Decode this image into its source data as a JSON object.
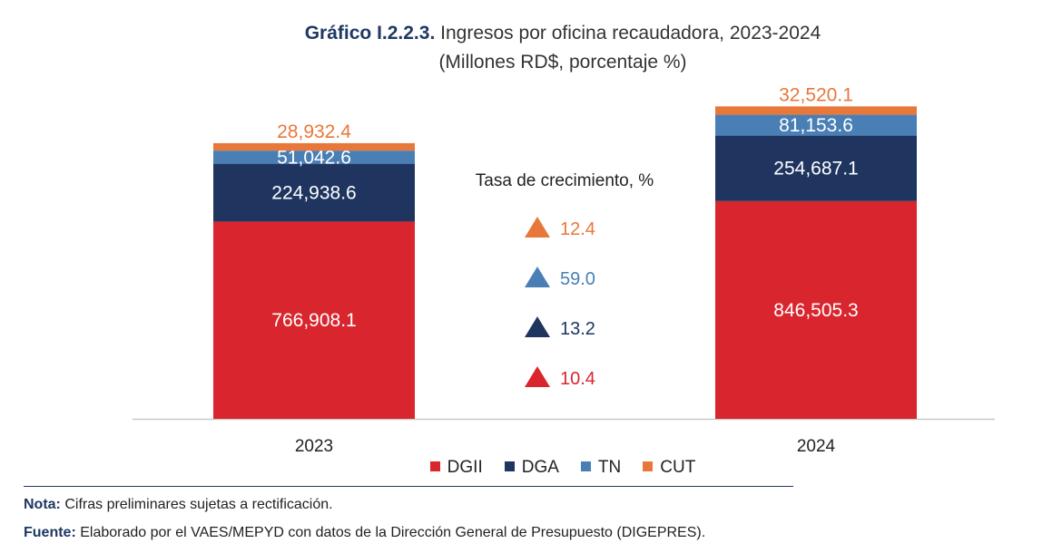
{
  "header": {
    "title_label": "Gráfico I.2.2.3.",
    "title_text": "Ingresos por oficina recaudadora, 2023-2024",
    "subtitle": "(Millones RD$, porcentaje %)"
  },
  "chart_data": {
    "type": "bar",
    "stacked": true,
    "categories": [
      "2023",
      "2024"
    ],
    "series": [
      {
        "name": "DGII",
        "color": "#d9262e",
        "values": [
          766908.1,
          846505.3
        ],
        "labels": [
          "766,908.1",
          "846,505.3"
        ]
      },
      {
        "name": "DGA",
        "color": "#1f3560",
        "values": [
          224938.6,
          254687.1
        ],
        "labels": [
          "224,938.6",
          "254,687.1"
        ]
      },
      {
        "name": "TN",
        "color": "#4a7fb5",
        "values": [
          51042.6,
          81153.6
        ],
        "labels": [
          "51,042.6",
          "81,153.6"
        ]
      },
      {
        "name": "CUT",
        "color": "#e8783a",
        "values": [
          28932.4,
          32520.1
        ],
        "labels": [
          "28,932.4",
          "32,520.1"
        ]
      }
    ],
    "growth": {
      "title": "Tasa de crecimiento, %",
      "items": [
        {
          "series": "CUT",
          "value": "12.4",
          "color": "#e8783a"
        },
        {
          "series": "TN",
          "value": "59.0",
          "color": "#4a7fb5"
        },
        {
          "series": "DGA",
          "value": "13.2",
          "color": "#1f3560"
        },
        {
          "series": "DGII",
          "value": "10.4",
          "color": "#d9262e"
        }
      ]
    },
    "legend_position": "bottom",
    "grid": false
  },
  "notes": {
    "nota_label": "Nota:",
    "nota_text": "Cifras preliminares sujetas a rectificación.",
    "fuente_label": "Fuente:",
    "fuente_text": "Elaborado por el VAES/MEPYD con datos de la Dirección General de Presupuesto (DIGEPRES)."
  }
}
